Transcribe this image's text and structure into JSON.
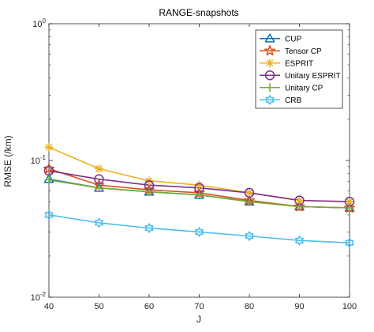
{
  "chart_data": {
    "type": "line",
    "title": "RANGE-snapshots",
    "xlabel": "J",
    "ylabel": "RMSE (/km)",
    "yscale": "log",
    "xlim": [
      40,
      100
    ],
    "ylim": [
      0.01,
      1
    ],
    "x": [
      40,
      50,
      60,
      70,
      80,
      90,
      100
    ],
    "x_tick_labels": [
      "40",
      "50",
      "60",
      "70",
      "80",
      "90",
      "100"
    ],
    "y_ticks": [
      {
        "value": 0.01,
        "base": "10",
        "exp": "-2"
      },
      {
        "value": 0.1,
        "base": "10",
        "exp": "-1"
      },
      {
        "value": 1,
        "base": "10",
        "exp": "0"
      }
    ],
    "grid": false,
    "legend_position": "top-right",
    "series": [
      {
        "name": "CUP",
        "color": "#0072BD",
        "marker": "triangle",
        "values": [
          0.073,
          0.063,
          0.059,
          0.056,
          0.05,
          0.046,
          0.045
        ]
      },
      {
        "name": "Tensor CP",
        "color": "#D95319",
        "marker": "pentagram",
        "values": [
          0.087,
          0.066,
          0.061,
          0.058,
          0.051,
          0.046,
          0.045
        ]
      },
      {
        "name": "ESPRIT",
        "color": "#EDB120",
        "marker": "asterisk",
        "values": [
          0.125,
          0.087,
          0.071,
          0.066,
          0.058,
          0.051,
          0.05
        ]
      },
      {
        "name": "Unitary ESPRIT",
        "color": "#7E2F8E",
        "marker": "circle",
        "values": [
          0.084,
          0.073,
          0.066,
          0.063,
          0.058,
          0.051,
          0.05
        ]
      },
      {
        "name": "Unitary CP",
        "color": "#77AC30",
        "marker": "plus",
        "values": [
          0.072,
          0.063,
          0.059,
          0.056,
          0.05,
          0.046,
          0.045
        ]
      },
      {
        "name": "CRB",
        "color": "#4DBEEE",
        "marker": "hexagram",
        "values": [
          0.04,
          0.035,
          0.032,
          0.03,
          0.028,
          0.026,
          0.025
        ]
      }
    ]
  }
}
